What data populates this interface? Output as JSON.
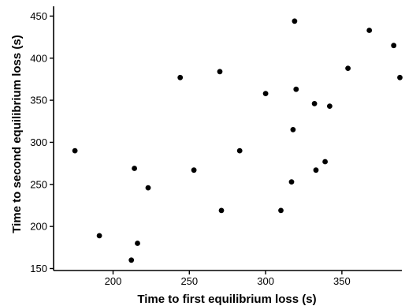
{
  "chart_data": {
    "type": "scatter",
    "xlabel": "Time to first equilibrium loss (s)",
    "ylabel": "Time to second equilibrium loss (s)",
    "xlim": [
      170,
      390
    ],
    "ylim": [
      145,
      455
    ],
    "xticks": [
      200,
      250,
      300,
      350
    ],
    "yticks": [
      150,
      200,
      250,
      300,
      350,
      400,
      450
    ],
    "grid": false,
    "legend": "none",
    "marker_color": "#000000",
    "points": [
      {
        "x": 175,
        "y": 290
      },
      {
        "x": 191,
        "y": 189
      },
      {
        "x": 212,
        "y": 160
      },
      {
        "x": 214,
        "y": 269
      },
      {
        "x": 216,
        "y": 180
      },
      {
        "x": 223,
        "y": 246
      },
      {
        "x": 244,
        "y": 377
      },
      {
        "x": 253,
        "y": 267
      },
      {
        "x": 270,
        "y": 384
      },
      {
        "x": 271,
        "y": 219
      },
      {
        "x": 283,
        "y": 290
      },
      {
        "x": 300,
        "y": 358
      },
      {
        "x": 310,
        "y": 219
      },
      {
        "x": 317,
        "y": 253
      },
      {
        "x": 318,
        "y": 315
      },
      {
        "x": 319,
        "y": 444
      },
      {
        "x": 320,
        "y": 363
      },
      {
        "x": 332,
        "y": 346
      },
      {
        "x": 333,
        "y": 267
      },
      {
        "x": 339,
        "y": 277
      },
      {
        "x": 342,
        "y": 343
      },
      {
        "x": 354,
        "y": 388
      },
      {
        "x": 368,
        "y": 433
      },
      {
        "x": 384,
        "y": 415
      },
      {
        "x": 388,
        "y": 377
      }
    ]
  }
}
